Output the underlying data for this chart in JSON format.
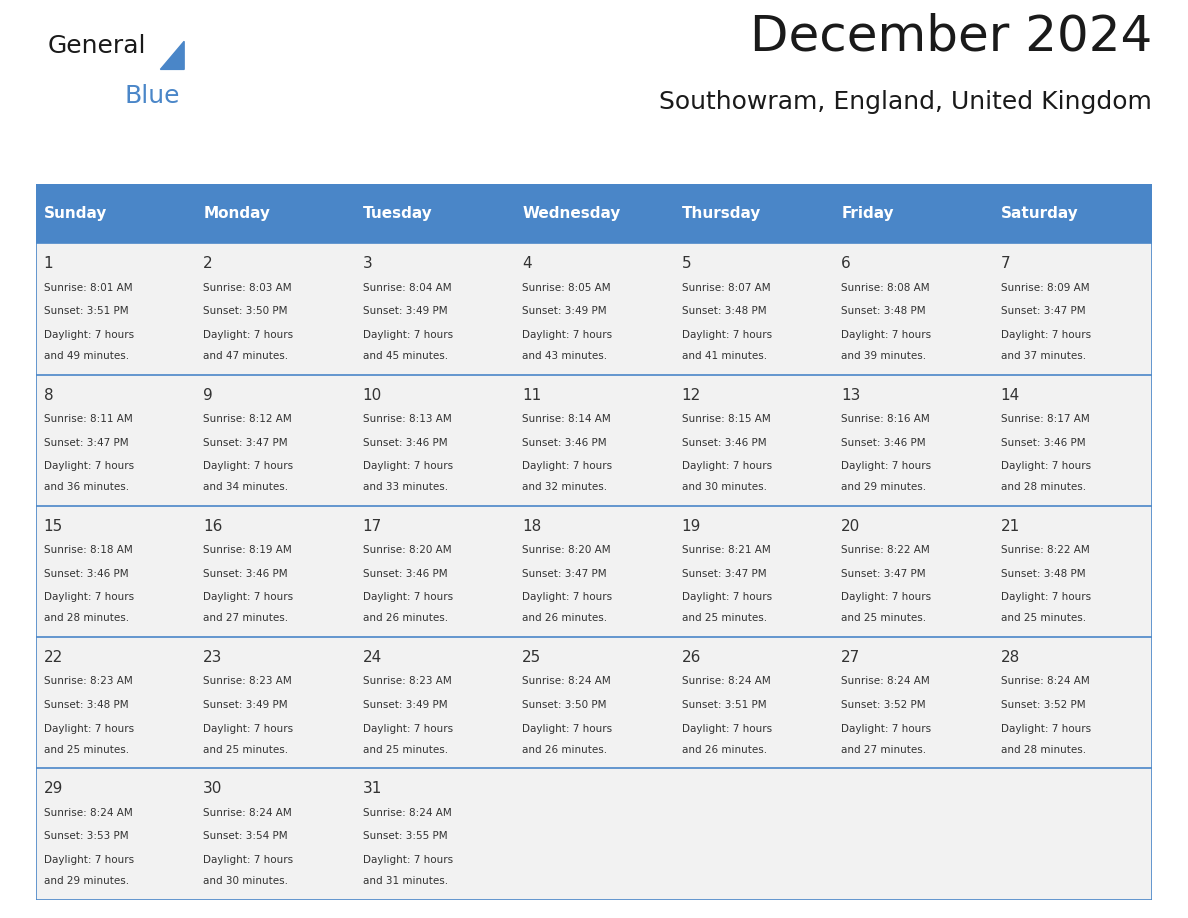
{
  "title": "December 2024",
  "subtitle": "Southowram, England, United Kingdom",
  "days_of_week": [
    "Sunday",
    "Monday",
    "Tuesday",
    "Wednesday",
    "Thursday",
    "Friday",
    "Saturday"
  ],
  "header_bg": "#4a86c8",
  "header_text_color": "#ffffff",
  "cell_bg_light": "#f2f2f2",
  "cell_bg_white": "#ffffff",
  "grid_line_color": "#4a86c8",
  "text_color": "#333333",
  "title_color": "#1a1a1a",
  "weeks": [
    [
      {
        "day": 1,
        "sunrise": "8:01 AM",
        "sunset": "3:51 PM",
        "daylight": "7 hours and 49 minutes."
      },
      {
        "day": 2,
        "sunrise": "8:03 AM",
        "sunset": "3:50 PM",
        "daylight": "7 hours and 47 minutes."
      },
      {
        "day": 3,
        "sunrise": "8:04 AM",
        "sunset": "3:49 PM",
        "daylight": "7 hours and 45 minutes."
      },
      {
        "day": 4,
        "sunrise": "8:05 AM",
        "sunset": "3:49 PM",
        "daylight": "7 hours and 43 minutes."
      },
      {
        "day": 5,
        "sunrise": "8:07 AM",
        "sunset": "3:48 PM",
        "daylight": "7 hours and 41 minutes."
      },
      {
        "day": 6,
        "sunrise": "8:08 AM",
        "sunset": "3:48 PM",
        "daylight": "7 hours and 39 minutes."
      },
      {
        "day": 7,
        "sunrise": "8:09 AM",
        "sunset": "3:47 PM",
        "daylight": "7 hours and 37 minutes."
      }
    ],
    [
      {
        "day": 8,
        "sunrise": "8:11 AM",
        "sunset": "3:47 PM",
        "daylight": "7 hours and 36 minutes."
      },
      {
        "day": 9,
        "sunrise": "8:12 AM",
        "sunset": "3:47 PM",
        "daylight": "7 hours and 34 minutes."
      },
      {
        "day": 10,
        "sunrise": "8:13 AM",
        "sunset": "3:46 PM",
        "daylight": "7 hours and 33 minutes."
      },
      {
        "day": 11,
        "sunrise": "8:14 AM",
        "sunset": "3:46 PM",
        "daylight": "7 hours and 32 minutes."
      },
      {
        "day": 12,
        "sunrise": "8:15 AM",
        "sunset": "3:46 PM",
        "daylight": "7 hours and 30 minutes."
      },
      {
        "day": 13,
        "sunrise": "8:16 AM",
        "sunset": "3:46 PM",
        "daylight": "7 hours and 29 minutes."
      },
      {
        "day": 14,
        "sunrise": "8:17 AM",
        "sunset": "3:46 PM",
        "daylight": "7 hours and 28 minutes."
      }
    ],
    [
      {
        "day": 15,
        "sunrise": "8:18 AM",
        "sunset": "3:46 PM",
        "daylight": "7 hours and 28 minutes."
      },
      {
        "day": 16,
        "sunrise": "8:19 AM",
        "sunset": "3:46 PM",
        "daylight": "7 hours and 27 minutes."
      },
      {
        "day": 17,
        "sunrise": "8:20 AM",
        "sunset": "3:46 PM",
        "daylight": "7 hours and 26 minutes."
      },
      {
        "day": 18,
        "sunrise": "8:20 AM",
        "sunset": "3:47 PM",
        "daylight": "7 hours and 26 minutes."
      },
      {
        "day": 19,
        "sunrise": "8:21 AM",
        "sunset": "3:47 PM",
        "daylight": "7 hours and 25 minutes."
      },
      {
        "day": 20,
        "sunrise": "8:22 AM",
        "sunset": "3:47 PM",
        "daylight": "7 hours and 25 minutes."
      },
      {
        "day": 21,
        "sunrise": "8:22 AM",
        "sunset": "3:48 PM",
        "daylight": "7 hours and 25 minutes."
      }
    ],
    [
      {
        "day": 22,
        "sunrise": "8:23 AM",
        "sunset": "3:48 PM",
        "daylight": "7 hours and 25 minutes."
      },
      {
        "day": 23,
        "sunrise": "8:23 AM",
        "sunset": "3:49 PM",
        "daylight": "7 hours and 25 minutes."
      },
      {
        "day": 24,
        "sunrise": "8:23 AM",
        "sunset": "3:49 PM",
        "daylight": "7 hours and 25 minutes."
      },
      {
        "day": 25,
        "sunrise": "8:24 AM",
        "sunset": "3:50 PM",
        "daylight": "7 hours and 26 minutes."
      },
      {
        "day": 26,
        "sunrise": "8:24 AM",
        "sunset": "3:51 PM",
        "daylight": "7 hours and 26 minutes."
      },
      {
        "day": 27,
        "sunrise": "8:24 AM",
        "sunset": "3:52 PM",
        "daylight": "7 hours and 27 minutes."
      },
      {
        "day": 28,
        "sunrise": "8:24 AM",
        "sunset": "3:52 PM",
        "daylight": "7 hours and 28 minutes."
      }
    ],
    [
      {
        "day": 29,
        "sunrise": "8:24 AM",
        "sunset": "3:53 PM",
        "daylight": "7 hours and 29 minutes."
      },
      {
        "day": 30,
        "sunrise": "8:24 AM",
        "sunset": "3:54 PM",
        "daylight": "7 hours and 30 minutes."
      },
      {
        "day": 31,
        "sunrise": "8:24 AM",
        "sunset": "3:55 PM",
        "daylight": "7 hours and 31 minutes."
      },
      null,
      null,
      null,
      null
    ]
  ],
  "logo_text_general": "General",
  "logo_text_blue": "Blue",
  "logo_triangle_color": "#4a86c8"
}
